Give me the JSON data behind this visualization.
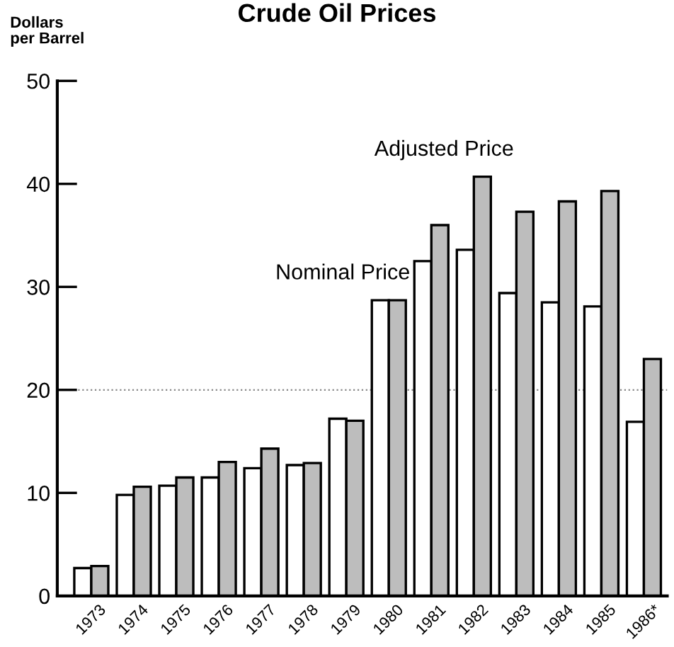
{
  "chart_data": {
    "type": "bar",
    "title": "Crude Oil Prices",
    "ylabel": "Dollars\nper Barrel",
    "categories": [
      "1973",
      "1974",
      "1975",
      "1976",
      "1977",
      "1978",
      "1979",
      "1980",
      "1981",
      "1982",
      "1983",
      "1984",
      "1985",
      "1986*"
    ],
    "series": [
      {
        "name": "Nominal Price",
        "color": "#ffffff",
        "values": [
          2.7,
          9.8,
          10.7,
          11.5,
          12.4,
          12.7,
          17.2,
          28.7,
          32.5,
          33.6,
          29.4,
          28.5,
          28.1,
          16.9
        ]
      },
      {
        "name": "Adjusted Price",
        "color": "#bdbdbd",
        "values": [
          2.9,
          10.6,
          11.5,
          13.0,
          14.3,
          12.9,
          17.0,
          28.7,
          36.0,
          40.7,
          37.3,
          38.3,
          39.3,
          23.0
        ]
      }
    ],
    "ylim": [
      0,
      50
    ],
    "yticks": [
      0,
      10,
      20,
      30,
      40,
      50
    ],
    "ref_lines": [
      {
        "axis": "y",
        "value": 20,
        "color": "#888888",
        "line_style": "dotted"
      }
    ],
    "grid": false,
    "legend": false
  }
}
